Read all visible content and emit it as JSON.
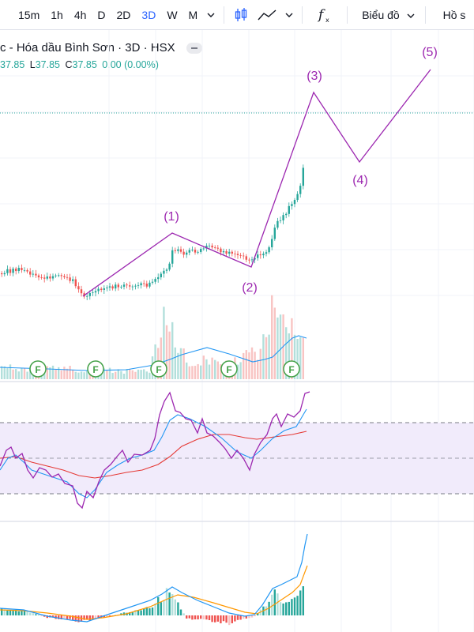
{
  "toolbar": {
    "timeframes": [
      "15m",
      "1h",
      "4h",
      "D",
      "2D",
      "3D",
      "W",
      "M"
    ],
    "active_timeframe": "3D",
    "chart_type_label": "Biểu đồ",
    "profile_label": "Hồ s"
  },
  "legend": {
    "title": "c - Hóa dầu Bình Sơn · 3D · HSX",
    "open_value": "37.85",
    "low_label": "L",
    "low_value": "37.85",
    "close_label": "C",
    "close_value": "37.85",
    "change": "0.00 (0.00%)"
  },
  "colors": {
    "up": "#26a69a",
    "down": "#ef5350",
    "wave": "#9c27b0",
    "volume_ma": "#2196f3",
    "rsi": "#9c27b0",
    "rsi_fast_ma": "#2196f3",
    "rsi_slow_ma": "#e53935",
    "macd_line": "#2196f3",
    "signal_line": "#ff9800"
  },
  "wave_labels": [
    {
      "label": "(1)"
    },
    {
      "label": "(2)"
    },
    {
      "label": "(3)"
    },
    {
      "label": "(4)"
    },
    {
      "label": "(5)"
    }
  ],
  "event_badge": "F"
}
